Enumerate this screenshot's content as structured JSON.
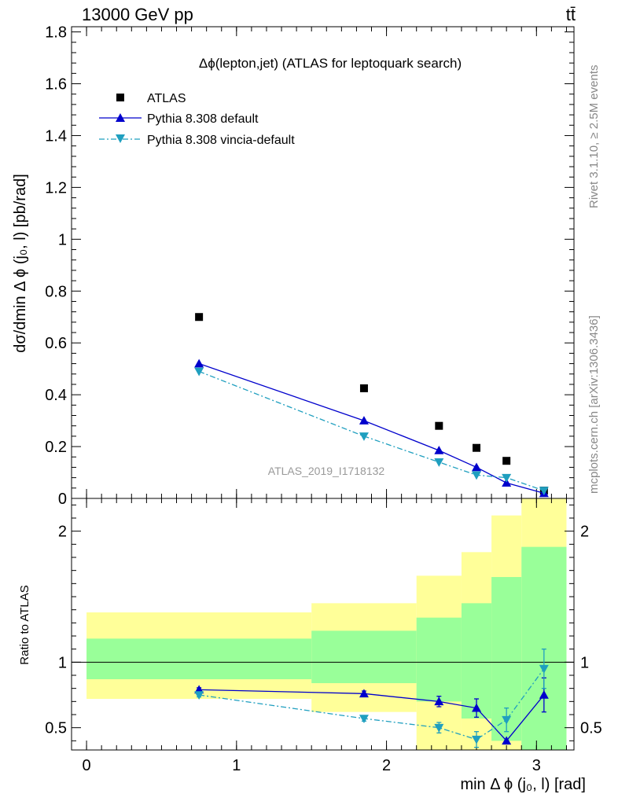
{
  "header": {
    "left": "13000 GeV pp",
    "right": "tt̄"
  },
  "side_labels": {
    "rivet": "Rivet 3.1.10, ≥ 2.5M events",
    "mcplots": "mcplots.cern.ch [arXiv:1306.3436]"
  },
  "chart_data": [
    {
      "type": "scatter",
      "title": "Δϕ(lepton,jet) (ATLAS for leptoquark search)",
      "watermark": "ATLAS_2019_I1718132",
      "ylabel": "dσ/dmin Δ ϕ (j₀, l) [pb/rad]",
      "xlim": [
        -0.1,
        3.25
      ],
      "ylim": [
        0,
        1.82
      ],
      "yticks": [
        0,
        0.2,
        0.4,
        0.6,
        0.8,
        1,
        1.2,
        1.4,
        1.6,
        1.8
      ],
      "ytick_labels": [
        "0",
        "0.2",
        "0.4",
        "0.6",
        "0.8",
        "1",
        "1.2",
        "1.4",
        "1.6",
        "1.8"
      ],
      "legend_position": "top-left",
      "series": [
        {
          "name": "ATLAS",
          "color": "#000000",
          "marker": "square",
          "x": [
            0.75,
            1.85,
            2.35,
            2.6,
            2.8,
            3.05
          ],
          "y": [
            0.7,
            0.425,
            0.28,
            0.195,
            0.145,
            0.03
          ]
        },
        {
          "name": "Pythia 8.308 default",
          "color": "#0000cc",
          "marker": "triangle-up",
          "line": "solid",
          "x": [
            0.75,
            1.85,
            2.35,
            2.6,
            2.8,
            3.05
          ],
          "y": [
            0.52,
            0.3,
            0.185,
            0.12,
            0.06,
            0.02
          ]
        },
        {
          "name": "Pythia 8.308 vincia-default",
          "color": "#1f9fbf",
          "marker": "triangle-down",
          "line": "dashdot",
          "x": [
            0.75,
            1.85,
            2.35,
            2.6,
            2.8,
            3.05
          ],
          "y": [
            0.49,
            0.24,
            0.14,
            0.09,
            0.08,
            0.03
          ]
        }
      ]
    },
    {
      "type": "line",
      "ylabel": "Ratio to ATLAS",
      "xlabel": "min Δ ϕ (j₀, l) [rad]",
      "xlim": [
        -0.1,
        3.25
      ],
      "ylim": [
        0.33,
        2.25
      ],
      "xticks": [
        0,
        1,
        2,
        3
      ],
      "xtick_labels": [
        "0",
        "1",
        "2",
        "3"
      ],
      "yticks": [
        0.5,
        1,
        2
      ],
      "ytick_labels": [
        "0.5",
        "1",
        "2"
      ],
      "bands": [
        {
          "x0": 0.0,
          "x1": 1.5,
          "yellow": [
            0.72,
            1.38
          ],
          "green": [
            0.87,
            1.18
          ]
        },
        {
          "x0": 1.5,
          "x1": 2.2,
          "yellow": [
            0.62,
            1.45
          ],
          "green": [
            0.84,
            1.24
          ]
        },
        {
          "x0": 2.2,
          "x1": 2.5,
          "yellow": [
            0.33,
            1.66
          ],
          "green": [
            0.7,
            1.34
          ]
        },
        {
          "x0": 2.5,
          "x1": 2.7,
          "yellow": [
            0.33,
            1.84
          ],
          "green": [
            0.57,
            1.45
          ]
        },
        {
          "x0": 2.7,
          "x1": 2.9,
          "yellow": [
            0.33,
            2.12
          ],
          "green": [
            0.4,
            1.65
          ]
        },
        {
          "x0": 2.9,
          "x1": 3.2,
          "yellow": [
            0.33,
            2.25
          ],
          "green": [
            0.33,
            1.88
          ]
        }
      ],
      "reference": 1,
      "series": [
        {
          "name": "Pythia 8.308 default",
          "color": "#0000cc",
          "marker": "triangle-up",
          "line": "solid",
          "x": [
            0.75,
            1.85,
            2.35,
            2.6,
            2.8,
            3.05
          ],
          "y": [
            0.79,
            0.76,
            0.7,
            0.65,
            0.4,
            0.75
          ],
          "err": [
            0.015,
            0.02,
            0.04,
            0.07,
            0.0,
            0.13
          ]
        },
        {
          "name": "Pythia 8.308 vincia-default",
          "color": "#1f9fbf",
          "marker": "triangle-down",
          "line": "dashdot",
          "x": [
            0.75,
            1.85,
            2.35,
            2.6,
            2.8,
            3.05
          ],
          "y": [
            0.75,
            0.57,
            0.5,
            0.41,
            0.56,
            0.95
          ],
          "err": [
            0.015,
            0.02,
            0.04,
            0.06,
            0.09,
            0.15
          ]
        }
      ]
    }
  ]
}
